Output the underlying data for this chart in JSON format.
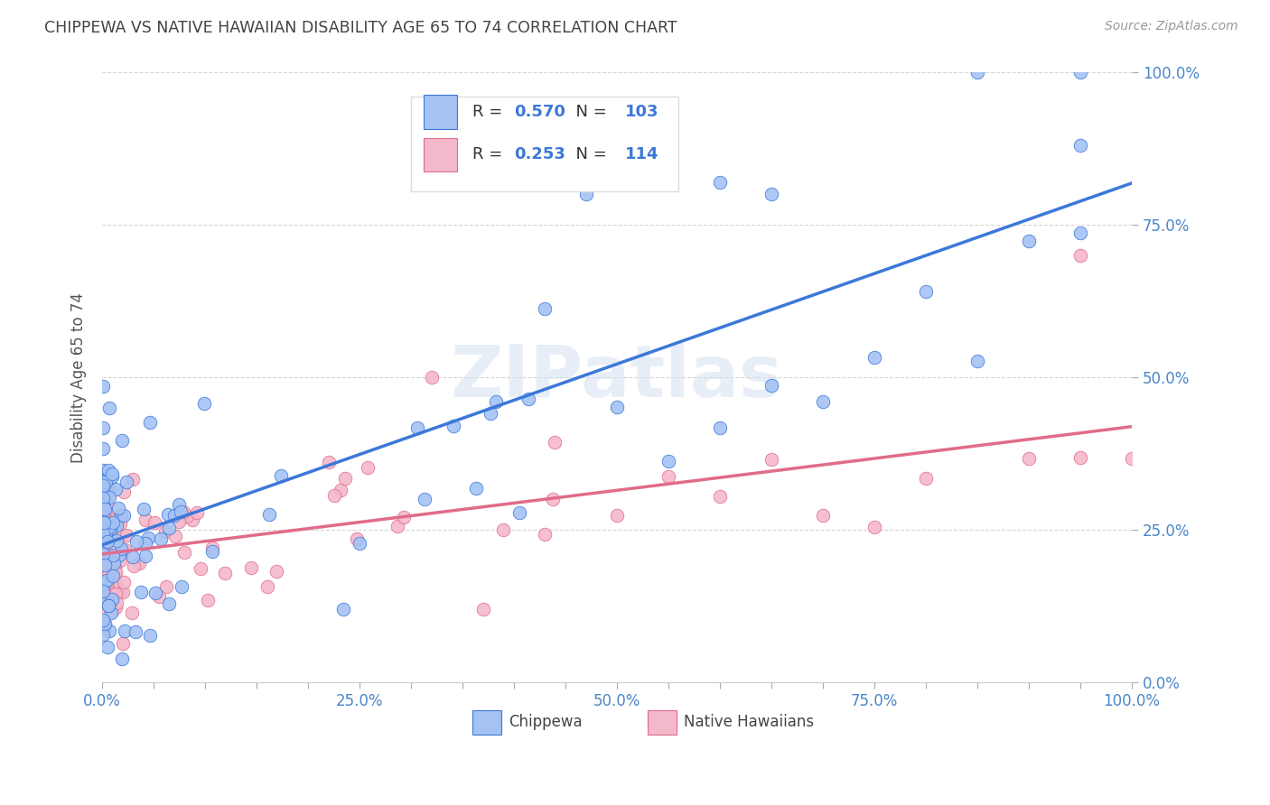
{
  "title": "CHIPPEWA VS NATIVE HAWAIIAN DISABILITY AGE 65 TO 74 CORRELATION CHART",
  "source": "Source: ZipAtlas.com",
  "ylabel": "Disability Age 65 to 74",
  "xlim": [
    0,
    1
  ],
  "ylim": [
    0,
    1
  ],
  "xtick_labels": [
    "0.0%",
    "",
    "",
    "",
    "",
    "25.0%",
    "",
    "",
    "",
    "",
    "50.0%",
    "",
    "",
    "",
    "",
    "75.0%",
    "",
    "",
    "",
    "",
    "100.0%"
  ],
  "ytick_labels": [
    "0.0%",
    "25.0%",
    "50.0%",
    "75.0%",
    "100.0%"
  ],
  "chippewa_color": "#a4c2f4",
  "hawaiian_color": "#f4b8cb",
  "chippewa_line_color": "#3c78d8",
  "hawaiian_line_color": "#e06c8a",
  "R_chippewa": 0.57,
  "N_chippewa": 103,
  "R_hawaiian": 0.253,
  "N_hawaiian": 114,
  "background_color": "#ffffff",
  "grid_color": "#cccccc",
  "title_color": "#444444",
  "axis_label_color": "#555555",
  "tick_label_color": "#4a86c8",
  "watermark": "ZIPatlas"
}
